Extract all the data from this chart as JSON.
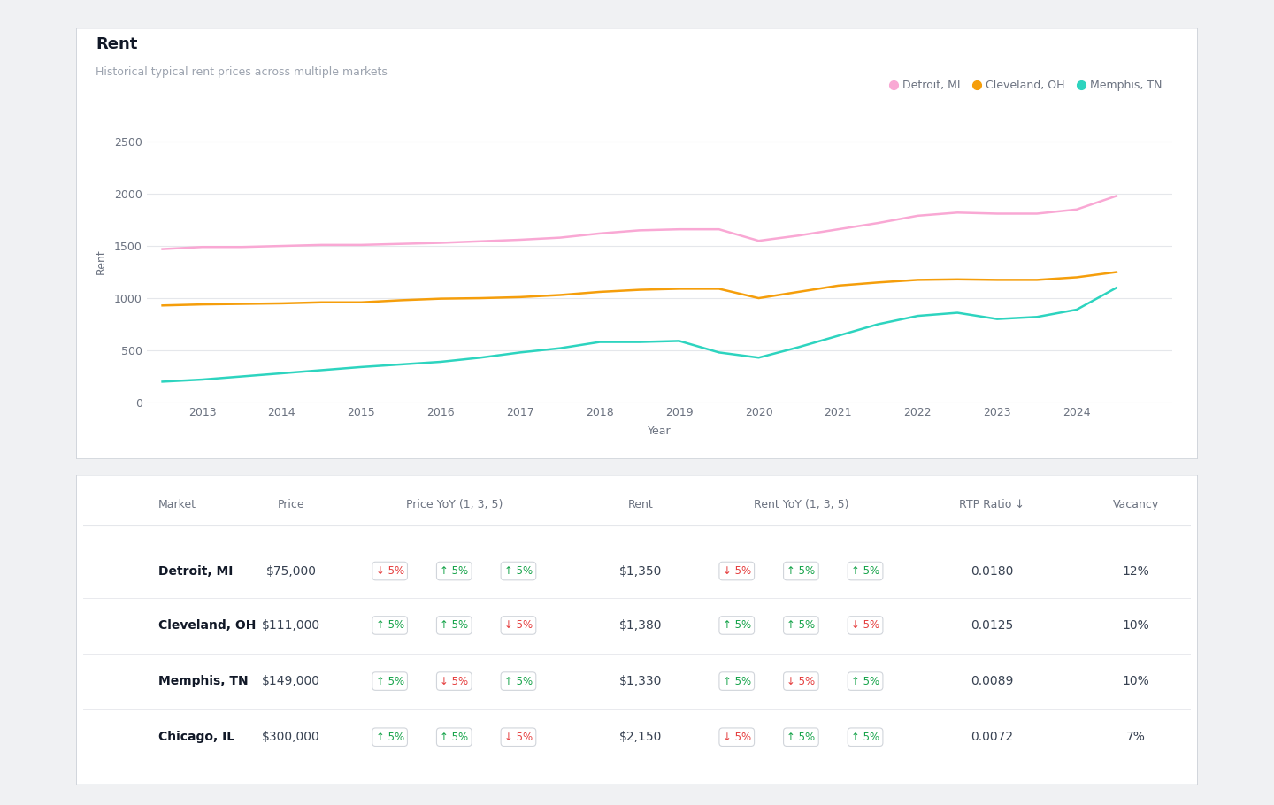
{
  "title": "Rent",
  "subtitle": "Historical typical rent prices across multiple markets",
  "outer_bg": "#f0f1f3",
  "ylabel": "Rent",
  "xlabel": "Year",
  "ylim": [
    0,
    2700
  ],
  "yticks": [
    0,
    500,
    1000,
    1500,
    2000,
    2500
  ],
  "years": [
    2012.5,
    2013,
    2013.5,
    2014,
    2014.5,
    2015,
    2015.5,
    2016,
    2016.5,
    2017,
    2017.5,
    2018,
    2018.5,
    2019,
    2019.5,
    2020,
    2020.5,
    2021,
    2021.5,
    2022,
    2022.5,
    2023,
    2023.5,
    2024,
    2024.5
  ],
  "xtick_years": [
    2013,
    2014,
    2015,
    2016,
    2017,
    2018,
    2019,
    2020,
    2021,
    2022,
    2023,
    2024
  ],
  "detroit_color": "#f9a8d4",
  "cleveland_color": "#f59e0b",
  "memphis_color": "#2dd4bf",
  "detroit_data": [
    1470,
    1490,
    1490,
    1500,
    1510,
    1510,
    1520,
    1530,
    1545,
    1560,
    1580,
    1620,
    1650,
    1660,
    1660,
    1550,
    1600,
    1660,
    1720,
    1790,
    1820,
    1810,
    1810,
    1850,
    1980
  ],
  "cleveland_data": [
    930,
    940,
    945,
    950,
    960,
    960,
    980,
    995,
    1000,
    1010,
    1030,
    1060,
    1080,
    1090,
    1090,
    1000,
    1060,
    1120,
    1150,
    1175,
    1180,
    1175,
    1175,
    1200,
    1250
  ],
  "memphis_data": [
    200,
    220,
    250,
    280,
    310,
    340,
    365,
    390,
    430,
    480,
    520,
    580,
    580,
    590,
    480,
    430,
    530,
    640,
    750,
    830,
    860,
    800,
    820,
    890,
    1100
  ],
  "legend_labels": [
    "Detroit, MI",
    "Cleveland, OH",
    "Memphis, TN"
  ],
  "table_markets": [
    "Detroit, MI",
    "Cleveland, OH",
    "Memphis, TN",
    "Chicago, IL"
  ],
  "table_prices": [
    "$75,000",
    "$111,000",
    "$149,000",
    "$300,000"
  ],
  "table_price_yoy": [
    [
      {
        "arrow": "down",
        "val": "5%"
      },
      {
        "arrow": "up",
        "val": "5%"
      },
      {
        "arrow": "up",
        "val": "5%"
      }
    ],
    [
      {
        "arrow": "up",
        "val": "5%"
      },
      {
        "arrow": "up",
        "val": "5%"
      },
      {
        "arrow": "down",
        "val": "5%"
      }
    ],
    [
      {
        "arrow": "up",
        "val": "5%"
      },
      {
        "arrow": "down",
        "val": "5%"
      },
      {
        "arrow": "up",
        "val": "5%"
      }
    ],
    [
      {
        "arrow": "up",
        "val": "5%"
      },
      {
        "arrow": "up",
        "val": "5%"
      },
      {
        "arrow": "down",
        "val": "5%"
      }
    ]
  ],
  "table_rents": [
    "$1,350",
    "$1,380",
    "$1,330",
    "$2,150"
  ],
  "table_rent_yoy": [
    [
      {
        "arrow": "down",
        "val": "5%"
      },
      {
        "arrow": "up",
        "val": "5%"
      },
      {
        "arrow": "up",
        "val": "5%"
      }
    ],
    [
      {
        "arrow": "up",
        "val": "5%"
      },
      {
        "arrow": "up",
        "val": "5%"
      },
      {
        "arrow": "down",
        "val": "5%"
      }
    ],
    [
      {
        "arrow": "up",
        "val": "5%"
      },
      {
        "arrow": "down",
        "val": "5%"
      },
      {
        "arrow": "up",
        "val": "5%"
      }
    ],
    [
      {
        "arrow": "down",
        "val": "5%"
      },
      {
        "arrow": "up",
        "val": "5%"
      },
      {
        "arrow": "up",
        "val": "5%"
      }
    ]
  ],
  "table_rtp": [
    "0.0180",
    "0.0125",
    "0.0089",
    "0.0072"
  ],
  "table_vacancy": [
    "12%",
    "10%",
    "10%",
    "7%"
  ]
}
